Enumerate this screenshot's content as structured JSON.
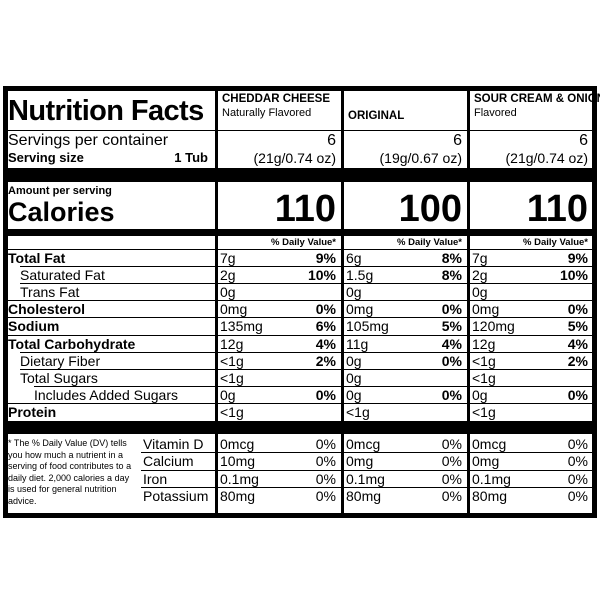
{
  "header": {
    "title": "Nutrition Facts"
  },
  "left": {
    "servings_label": "Servings per container",
    "serving_size_label": "Serving size",
    "serving_size": "1 Tub",
    "amount_per_serving": "Amount per serving",
    "calories_label": "Calories",
    "footnote": "* The % Daily Value (DV) tells you how much a nutrient in a serving of food contributes to a daily diet. 2,000 calories a day is used for general nutrition advice."
  },
  "nutrients": [
    "Total Fat",
    "Saturated Fat",
    "Trans Fat",
    "Cholesterol",
    "Sodium",
    "Total Carbohydrate",
    "Dietary Fiber",
    "Total Sugars",
    "Includes Added Sugars",
    "Protein"
  ],
  "vitamins": [
    "Vitamin D",
    "Calcium",
    "Iron",
    "Potassium"
  ],
  "products": [
    {
      "name": "CHEDDAR CHEESE",
      "subtitle": "Naturally Flavored",
      "servings": "6",
      "serving_weight": "(21g/0.74 oz)",
      "calories": "110",
      "dv_header": "% Daily Value*",
      "nutrients": [
        {
          "amount": "7g",
          "dv": "9%"
        },
        {
          "amount": "2g",
          "dv": "10%"
        },
        {
          "amount": "0g"
        },
        {
          "amount": "0mg",
          "dv": "0%"
        },
        {
          "amount": "135mg",
          "dv": "6%"
        },
        {
          "amount": "12g",
          "dv": "4%"
        },
        {
          "amount": "<1g",
          "dv": "2%"
        },
        {
          "amount": "<1g"
        },
        {
          "amount": "0g",
          "dv": "0%"
        },
        {
          "amount": "<1g"
        }
      ],
      "vitamins": [
        {
          "amount": "0mcg",
          "dv": "0%"
        },
        {
          "amount": "10mg",
          "dv": "0%"
        },
        {
          "amount": "0.1mg",
          "dv": "0%"
        },
        {
          "amount": "80mg",
          "dv": "0%"
        }
      ]
    },
    {
      "name": "ORIGINAL",
      "servings": "6",
      "serving_weight": "(19g/0.67 oz)",
      "calories": "100",
      "dv_header": "% Daily Value*",
      "nutrients": [
        {
          "amount": "6g",
          "dv": "8%"
        },
        {
          "amount": "1.5g",
          "dv": "8%"
        },
        {
          "amount": "0g"
        },
        {
          "amount": "0mg",
          "dv": "0%"
        },
        {
          "amount": "105mg",
          "dv": "5%"
        },
        {
          "amount": "11g",
          "dv": "4%"
        },
        {
          "amount": "0g",
          "dv": "0%"
        },
        {
          "amount": "0g"
        },
        {
          "amount": "0g",
          "dv": "0%"
        },
        {
          "amount": "<1g"
        }
      ],
      "vitamins": [
        {
          "amount": "0mcg",
          "dv": "0%"
        },
        {
          "amount": "0mg",
          "dv": "0%"
        },
        {
          "amount": "0.1mg",
          "dv": "0%"
        },
        {
          "amount": "80mg",
          "dv": "0%"
        }
      ]
    },
    {
      "name": "SOUR CREAM & ONION",
      "subtitle": "Flavored",
      "servings": "6",
      "serving_weight": "(21g/0.74 oz)",
      "calories": "110",
      "dv_header": "% Daily Value*",
      "nutrients": [
        {
          "amount": "7g",
          "dv": "9%"
        },
        {
          "amount": "2g",
          "dv": "10%"
        },
        {
          "amount": "0g"
        },
        {
          "amount": "0mg",
          "dv": "0%"
        },
        {
          "amount": "120mg",
          "dv": "5%"
        },
        {
          "amount": "12g",
          "dv": "4%"
        },
        {
          "amount": "<1g",
          "dv": "2%"
        },
        {
          "amount": "<1g"
        },
        {
          "amount": "0g",
          "dv": "0%"
        },
        {
          "amount": "<1g"
        }
      ],
      "vitamins": [
        {
          "amount": "0mcg",
          "dv": "0%"
        },
        {
          "amount": "0mg",
          "dv": "0%"
        },
        {
          "amount": "0.1mg",
          "dv": "0%"
        },
        {
          "amount": "80mg",
          "dv": "0%"
        }
      ]
    }
  ]
}
